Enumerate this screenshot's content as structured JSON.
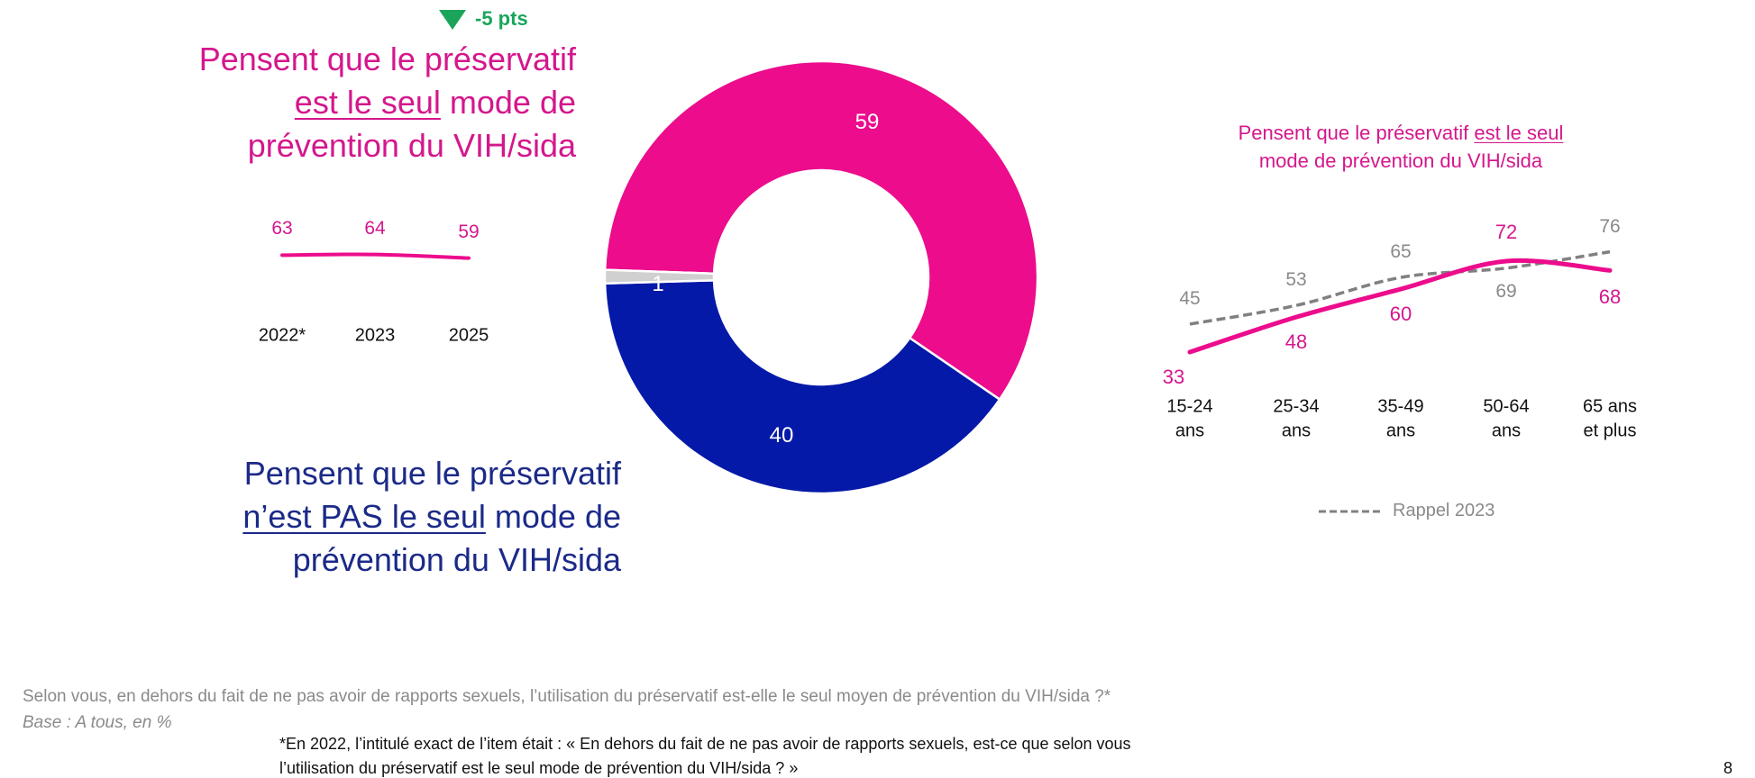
{
  "colors": {
    "pink": "#ec0c8c",
    "blue": "#0519a8",
    "grey": "#d0d0d0",
    "green": "#1aa55a",
    "dash": "#808080",
    "text_pink": "#d4178c",
    "text_navy": "#1b2a88"
  },
  "change_badge": {
    "icon": "triangle-down-icon",
    "label": "-5 pts"
  },
  "left_title": {
    "line1": "Pensent que le préservatif",
    "line2_underlined": "est le seul",
    "line2_rest": " mode de",
    "line3": "prévention du VIH/sida"
  },
  "bottom_title": {
    "line1": "Pensent que le préservatif",
    "line2_underlined": "n’est PAS le seul",
    "line2_rest": " mode de",
    "line3": "prévention du VIH/sida"
  },
  "chart_data": [
    {
      "type": "line",
      "categories": [
        "2022*",
        "2023",
        "2025"
      ],
      "values": [
        63,
        64,
        59
      ]
    },
    {
      "type": "pie",
      "donut": true,
      "slices": [
        {
          "label": "Pensent que le préservatif est le seul mode de prévention du VIH/sida",
          "value": 59,
          "color": "#ec0c8c"
        },
        {
          "label": "Pensent que le préservatif n’est PAS le seul mode de prévention du VIH/sida",
          "value": 40,
          "color": "#0519a8"
        },
        {
          "label": "",
          "value": 1,
          "color": "#d0d0d0"
        }
      ],
      "data_labels": [
        "59",
        "40",
        "1"
      ]
    },
    {
      "type": "line",
      "title_part1": "Pensent que le préservatif ",
      "title_underlined": "est le seul",
      "title_line2": "mode de prévention du VIH/sida",
      "categories": [
        [
          "15-24",
          "ans"
        ],
        [
          "25-34",
          "ans"
        ],
        [
          "35-49",
          "ans"
        ],
        [
          "50-64",
          "ans"
        ],
        [
          "65 ans",
          "et plus"
        ]
      ],
      "series": [
        {
          "values": [
            33,
            48,
            60,
            72,
            68
          ],
          "color": "#ec0c8c",
          "style": "solid"
        },
        {
          "name": "Rappel 2023",
          "values": [
            45,
            53,
            65,
            69,
            76
          ],
          "color": "#808080",
          "style": "dashed"
        }
      ],
      "legend": "bottom"
    }
  ],
  "footer": {
    "question": "Selon vous, en dehors du fait de ne pas avoir de rapports sexuels, l’utilisation du préservatif est-elle le seul moyen de prévention du VIH/sida ?*",
    "base": "Base : A tous, en %",
    "note_line1": "*En 2022, l’intitulé exact de l’item était : « En dehors du fait de ne pas avoir de rapports sexuels, est-ce que selon vous",
    "note_line2": "l’utilisation du préservatif est le seul mode de prévention du VIH/sida ? »",
    "page_number": "8"
  }
}
